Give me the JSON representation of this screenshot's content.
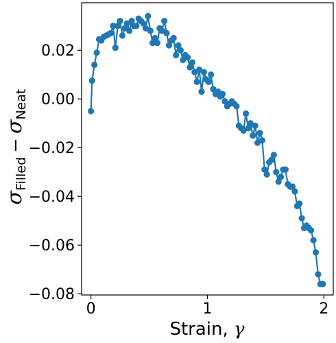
{
  "chart_data": {
    "type": "line",
    "xlabel_text": "Strain, ",
    "xlabel_symbol": "γ",
    "ylabel_sigma": "σ",
    "ylabel_sub1": "Filled",
    "ylabel_minus": "−",
    "ylabel_sub2": "Neat",
    "xlim": [
      -0.08,
      2.08
    ],
    "ylim": [
      -0.0805,
      0.0395
    ],
    "xticks": [
      0,
      1,
      2
    ],
    "xtick_labels": [
      "0",
      "1",
      "2"
    ],
    "yticks": [
      0.02,
      0.0,
      -0.02,
      -0.04,
      -0.06,
      -0.08
    ],
    "ytick_labels": [
      "0.02",
      "0.00",
      "−0.02",
      "−0.04",
      "−0.06",
      "−0.08"
    ],
    "grid": false,
    "color": "#1f77b4",
    "series": [
      {
        "x": [
          0.0,
          0.01,
          0.03,
          0.05,
          0.07,
          0.09,
          0.11,
          0.13,
          0.15,
          0.17,
          0.19,
          0.21,
          0.23,
          0.25,
          0.27,
          0.29,
          0.31,
          0.33,
          0.35,
          0.37,
          0.39,
          0.41,
          0.43,
          0.45,
          0.47,
          0.49,
          0.51,
          0.53,
          0.55,
          0.57,
          0.59,
          0.61,
          0.63,
          0.65,
          0.67,
          0.69,
          0.71,
          0.73,
          0.75,
          0.77,
          0.79,
          0.81,
          0.83,
          0.85,
          0.87,
          0.89,
          0.91,
          0.93,
          0.95,
          0.97,
          0.99,
          1.01,
          1.03,
          1.05,
          1.07,
          1.09,
          1.11,
          1.13,
          1.15,
          1.17,
          1.19,
          1.21,
          1.23,
          1.25,
          1.27,
          1.29,
          1.31,
          1.33,
          1.35,
          1.37,
          1.39,
          1.41,
          1.43,
          1.45,
          1.47,
          1.49,
          1.51,
          1.53,
          1.55,
          1.57,
          1.59,
          1.61,
          1.63,
          1.65,
          1.67,
          1.69,
          1.71,
          1.73,
          1.75,
          1.77,
          1.79,
          1.81,
          1.83,
          1.85,
          1.87,
          1.89,
          1.91,
          1.93,
          1.95,
          1.97,
          1.99
        ],
        "y": [
          -0.005,
          0.0075,
          0.014,
          0.019,
          0.0245,
          0.024,
          0.0255,
          0.026,
          0.0265,
          0.027,
          0.03,
          0.021,
          0.03,
          0.032,
          0.026,
          0.029,
          0.031,
          0.028,
          0.032,
          0.03,
          0.03,
          0.033,
          0.032,
          0.031,
          0.029,
          0.034,
          0.028,
          0.023,
          0.025,
          0.023,
          0.029,
          0.028,
          0.032,
          0.027,
          0.022,
          0.024,
          0.025,
          0.018,
          0.022,
          0.02,
          0.016,
          0.018,
          0.017,
          0.013,
          0.015,
          0.011,
          0.007,
          0.012,
          0.003,
          0.011,
          0.008,
          0.007,
          0.01,
          0.004,
          0.002,
          0.003,
          0.001,
          0.002,
          -0.001,
          -0.003,
          -0.002,
          -0.001,
          -0.002,
          -0.003,
          -0.011,
          -0.012,
          -0.013,
          -0.006,
          -0.012,
          -0.01,
          -0.015,
          -0.011,
          -0.018,
          -0.014,
          -0.017,
          -0.029,
          -0.031,
          -0.026,
          -0.025,
          -0.023,
          -0.03,
          -0.034,
          -0.032,
          -0.029,
          -0.029,
          -0.035,
          -0.036,
          -0.036,
          -0.038,
          -0.044,
          -0.043,
          -0.049,
          -0.053,
          -0.052,
          -0.053,
          -0.054,
          -0.058,
          -0.063,
          -0.072,
          -0.076,
          -0.076
        ]
      }
    ]
  }
}
